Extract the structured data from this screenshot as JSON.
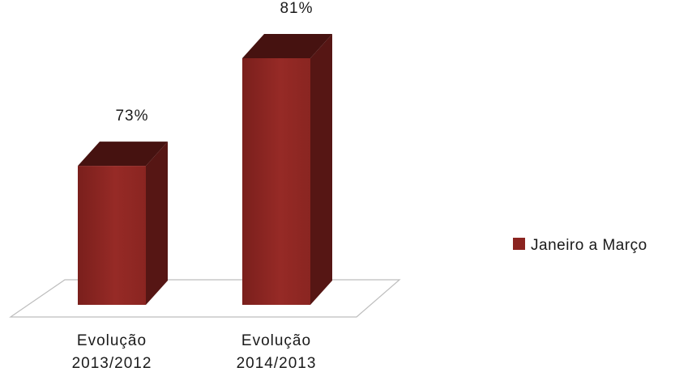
{
  "chart_data": {
    "type": "bar",
    "style": "3d-column",
    "categories": [
      [
        "Evolução",
        "2013/2012"
      ],
      [
        "Evolução",
        "2014/2013"
      ]
    ],
    "series": [
      {
        "name": "Janeiro a Março",
        "values": [
          73,
          81
        ],
        "data_labels": [
          "73%",
          "81%"
        ],
        "color": "#8b2420"
      }
    ],
    "title": "",
    "xlabel": "",
    "ylabel": "",
    "ylim": [
      70,
      81
    ],
    "grid": false,
    "legend_position": "right"
  }
}
